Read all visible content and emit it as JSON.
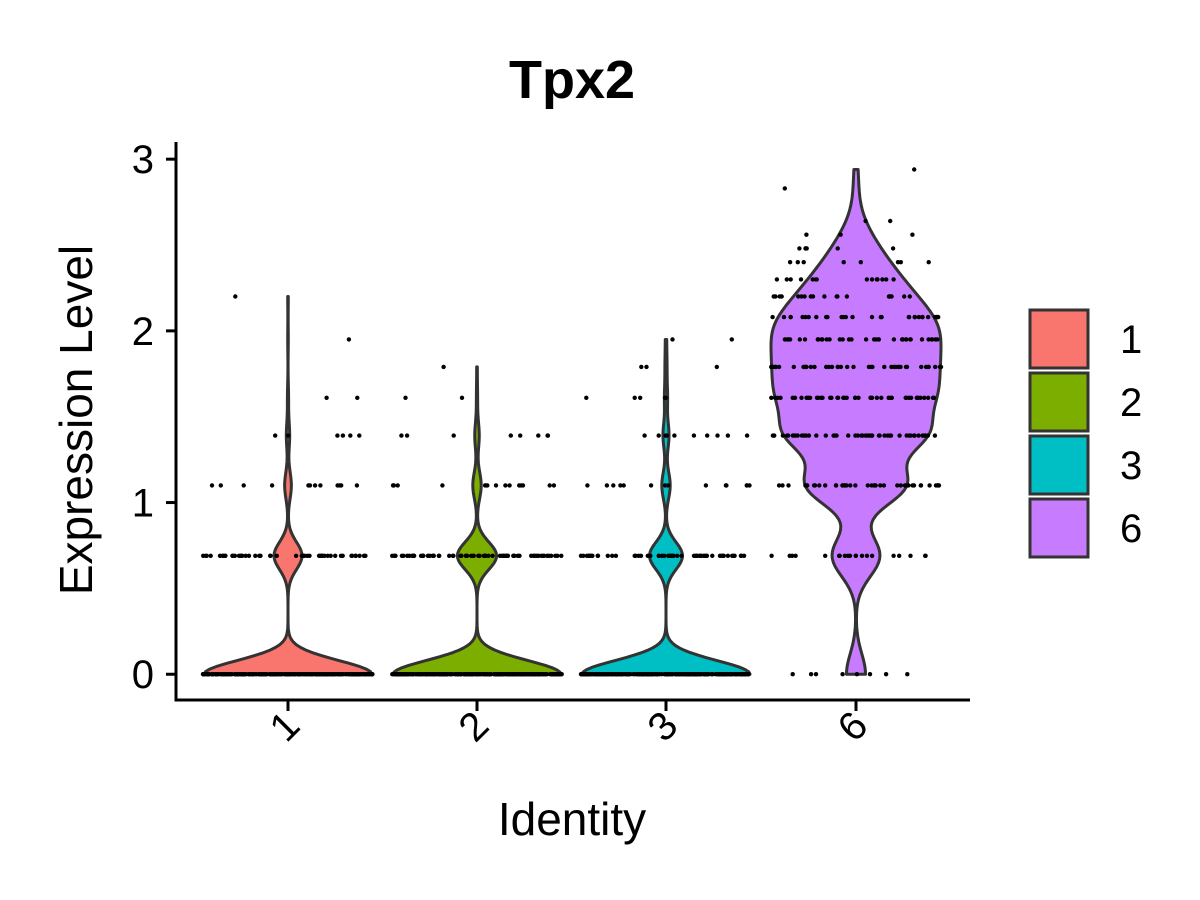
{
  "chart_data": {
    "type": "violin",
    "title": "Tpx2",
    "xlabel": "Identity",
    "ylabel": "Expression Level",
    "ylim": [
      -0.15,
      3.1
    ],
    "y_ticks": [
      0,
      1,
      2,
      3
    ],
    "grid": false,
    "legend_position": "right",
    "categories": [
      "1",
      "2",
      "3",
      "6"
    ],
    "colors": [
      "#F8766D",
      "#7CAE00",
      "#00BFC4",
      "#C77CFF"
    ],
    "series": [
      {
        "category": "1",
        "max": 2.2,
        "expression_levels": [
          {
            "value": 0,
            "cells": 300
          },
          {
            "value": 0.69,
            "cells": 50
          },
          {
            "value": 1.1,
            "cells": 12
          },
          {
            "value": 1.39,
            "cells": 6
          },
          {
            "value": 1.61,
            "cells": 2
          },
          {
            "value": 1.95,
            "cells": 1
          },
          {
            "value": 2.2,
            "cells": 1
          }
        ]
      },
      {
        "category": "2",
        "max": 1.79,
        "expression_levels": [
          {
            "value": 0,
            "cells": 300
          },
          {
            "value": 0.69,
            "cells": 70
          },
          {
            "value": 1.1,
            "cells": 15
          },
          {
            "value": 1.39,
            "cells": 8
          },
          {
            "value": 1.61,
            "cells": 2
          },
          {
            "value": 1.79,
            "cells": 1
          }
        ]
      },
      {
        "category": "3",
        "max": 1.95,
        "expression_levels": [
          {
            "value": 0,
            "cells": 280
          },
          {
            "value": 0.69,
            "cells": 55
          },
          {
            "value": 1.1,
            "cells": 14
          },
          {
            "value": 1.39,
            "cells": 10
          },
          {
            "value": 1.61,
            "cells": 5
          },
          {
            "value": 1.79,
            "cells": 3
          },
          {
            "value": 1.95,
            "cells": 2
          }
        ]
      },
      {
        "category": "6",
        "max": 2.94,
        "expression_levels": [
          {
            "value": 0,
            "cells": 8
          },
          {
            "value": 0.69,
            "cells": 20
          },
          {
            "value": 1.1,
            "cells": 40
          },
          {
            "value": 1.39,
            "cells": 50
          },
          {
            "value": 1.61,
            "cells": 45
          },
          {
            "value": 1.79,
            "cells": 40
          },
          {
            "value": 1.95,
            "cells": 35
          },
          {
            "value": 2.08,
            "cells": 30
          },
          {
            "value": 2.2,
            "cells": 18
          },
          {
            "value": 2.3,
            "cells": 14
          },
          {
            "value": 2.4,
            "cells": 8
          },
          {
            "value": 2.48,
            "cells": 6
          },
          {
            "value": 2.56,
            "cells": 3
          },
          {
            "value": 2.64,
            "cells": 2
          },
          {
            "value": 2.83,
            "cells": 1
          },
          {
            "value": 2.94,
            "cells": 1
          }
        ]
      }
    ]
  }
}
